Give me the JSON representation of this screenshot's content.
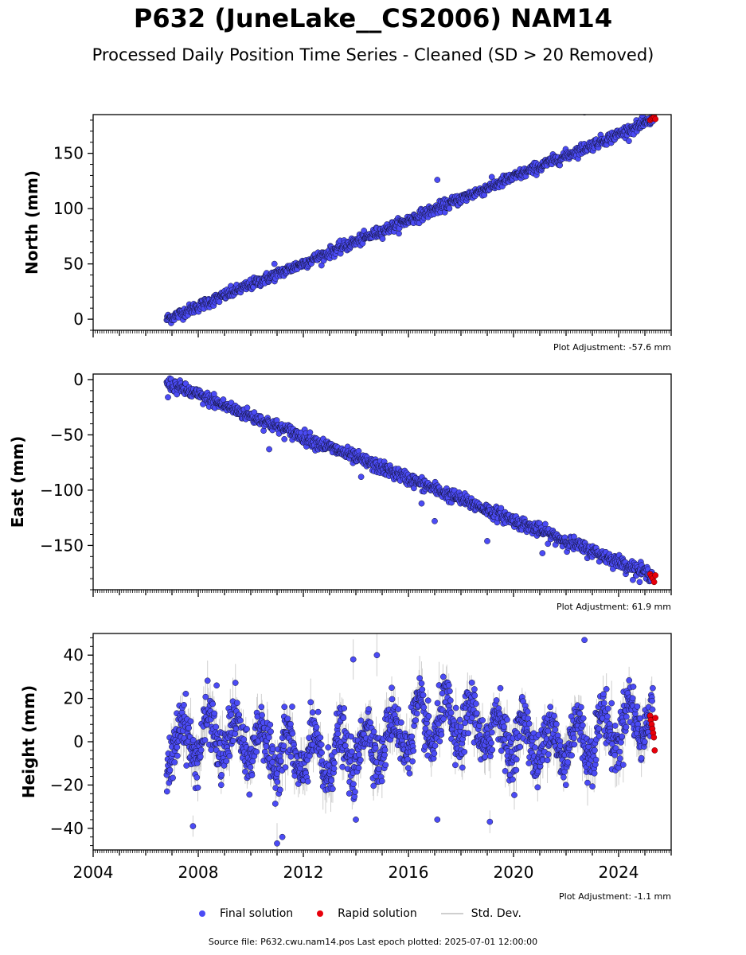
{
  "title": "P632 (JuneLake__CS2006) NAM14",
  "subtitle": "Processed Daily Position Time Series - Cleaned (SD > 20 Removed)",
  "legend": {
    "final": "Final solution",
    "rapid": "Rapid solution",
    "stddev": "Std. Dev."
  },
  "source_line": "Source file: P632.cwu.nam14.pos  Last epoch plotted: 2025-07-01 12:00:00",
  "colors": {
    "final": "#4b4bf5",
    "rapid": "#e8000b",
    "stddev": "#bbbbbb",
    "edge": "#111133"
  },
  "chart_data": [
    {
      "type": "scatter",
      "panel": "north",
      "ylabel": "North (mm)",
      "xlim": [
        2004.0,
        2026.0
      ],
      "ylim": [
        -10,
        185
      ],
      "yticks": [
        0,
        50,
        100,
        150
      ],
      "adjustment": "Plot Adjustment: -57.6 mm",
      "final_trend": {
        "start": [
          2006.8,
          0
        ],
        "end": [
          2025.3,
          180
        ]
      },
      "scatter_sd_mm": 2.5,
      "rapid_points": {
        "x_start": 2025.2,
        "x_end": 2025.4,
        "y": [
          180,
          181,
          182,
          183,
          181
        ]
      },
      "outliers": [
        [
          2010.9,
          50
        ],
        [
          2017.1,
          126
        ],
        [
          2022.7,
          187
        ]
      ]
    },
    {
      "type": "scatter",
      "panel": "east",
      "ylabel": "East (mm)",
      "xlim": [
        2004.0,
        2026.0
      ],
      "ylim": [
        -190,
        5
      ],
      "yticks": [
        0,
        -50,
        -100,
        -150
      ],
      "adjustment": "Plot Adjustment: 61.9 mm",
      "final_trend": {
        "start": [
          2006.8,
          -3
        ],
        "end": [
          2025.3,
          -177
        ]
      },
      "scatter_sd_mm": 3.0,
      "rapid_points": {
        "x_start": 2025.2,
        "x_end": 2025.4,
        "y": [
          -176,
          -178,
          -180,
          -183,
          -177
        ]
      },
      "outliers": [
        [
          2006.85,
          -16
        ],
        [
          2008.6,
          -13
        ],
        [
          2010.7,
          -63
        ],
        [
          2014.2,
          -88
        ],
        [
          2016.5,
          -112
        ],
        [
          2017.0,
          -128
        ],
        [
          2019.0,
          -146
        ],
        [
          2021.1,
          -157
        ],
        [
          2024.8,
          -183
        ]
      ]
    },
    {
      "type": "scatter",
      "panel": "height",
      "ylabel": "Height (mm)",
      "xlim": [
        2004.0,
        2026.0
      ],
      "ylim": [
        -50,
        50
      ],
      "yticks": [
        -40,
        -20,
        0,
        20,
        40
      ],
      "xticks": [
        2004,
        2008,
        2012,
        2016,
        2020,
        2024
      ],
      "adjustment": "Plot Adjustment: -1.1 mm",
      "final_trend": {
        "start": [
          2006.8,
          -5
        ],
        "end": [
          2025.3,
          8
        ]
      },
      "seasonal_amplitude_mm": 10,
      "scatter_sd_mm": 6,
      "rapid_points": {
        "x_start": 2025.2,
        "x_end": 2025.4,
        "y": [
          12,
          10,
          8,
          6,
          4,
          2,
          -4,
          11
        ]
      },
      "outliers": [
        [
          2007.8,
          -39
        ],
        [
          2008.7,
          26
        ],
        [
          2011.0,
          -47
        ],
        [
          2011.2,
          -44
        ],
        [
          2013.9,
          38
        ],
        [
          2014.0,
          -36
        ],
        [
          2014.8,
          40
        ],
        [
          2017.1,
          -36
        ],
        [
          2019.1,
          -37
        ],
        [
          2022.7,
          47
        ]
      ]
    }
  ]
}
